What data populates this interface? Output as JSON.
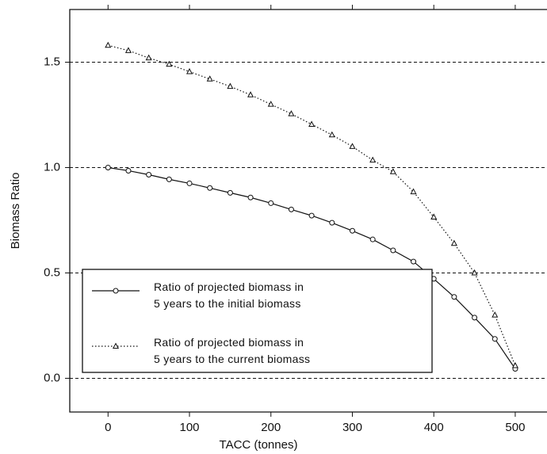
{
  "chart_data": {
    "type": "line",
    "x_label": "TACC (tonnes)",
    "y_label": "Biomass Ratio",
    "x": [
      0,
      25,
      50,
      75,
      100,
      125,
      150,
      175,
      200,
      225,
      250,
      275,
      300,
      325,
      350,
      375,
      400,
      425,
      450,
      475,
      500
    ],
    "series": [
      {
        "name": "Ratio of projected biomass in\n5 years to the initial biomass",
        "color": "#111111",
        "linestyle": "solid",
        "marker": "circle",
        "values": [
          1.0,
          0.985,
          0.966,
          0.944,
          0.925,
          0.903,
          0.88,
          0.858,
          0.831,
          0.801,
          0.772,
          0.738,
          0.7,
          0.659,
          0.607,
          0.554,
          0.472,
          0.386,
          0.288,
          0.187,
          0.045
        ]
      },
      {
        "name": "Ratio of projected biomass in\n5 years to the current biomass",
        "color": "#111111",
        "linestyle": "dotted",
        "marker": "triangle",
        "values": [
          1.58,
          1.555,
          1.52,
          1.49,
          1.455,
          1.42,
          1.385,
          1.345,
          1.3,
          1.255,
          1.205,
          1.155,
          1.1,
          1.035,
          0.98,
          0.885,
          0.765,
          0.64,
          0.5,
          0.3,
          0.06
        ]
      }
    ],
    "xlim": [
      -47,
      539
    ],
    "ylim": [
      -0.16,
      1.75
    ],
    "xticks": [
      0,
      100,
      200,
      300,
      400,
      500
    ],
    "yticks": [
      {
        "value": 0,
        "label": "0.0"
      },
      0.5,
      {
        "value": 1,
        "label": "1.0"
      },
      1.5
    ],
    "grid": true,
    "legend_position": "lower left"
  }
}
